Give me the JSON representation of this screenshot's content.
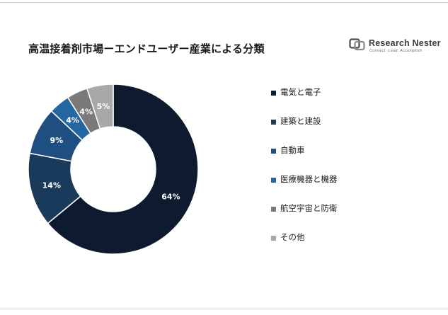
{
  "title": "高温接着剤市場ーエンドユーザー産業による分類",
  "logo": {
    "name": "Research Nester",
    "tagline": "Connect. Lead. Accomplish"
  },
  "chart_data": {
    "type": "pie",
    "title": "高温接着剤市場ーエンドユーザー産業による分類",
    "donut": true,
    "legend_position": "right",
    "categories": [
      "電気と電子",
      "建築と建設",
      "自動車",
      "医療機器と機器",
      "航空宇宙と防衛",
      "その他"
    ],
    "values": [
      64,
      14,
      9,
      4,
      4,
      5
    ],
    "data_labels": [
      "64%",
      "14%",
      "9%",
      "4%",
      "4%",
      "5%"
    ],
    "colors": [
      "#0e1a2e",
      "#1a3a5c",
      "#1f4f80",
      "#2466a0",
      "#7a7a7a",
      "#a8a8a8"
    ]
  }
}
